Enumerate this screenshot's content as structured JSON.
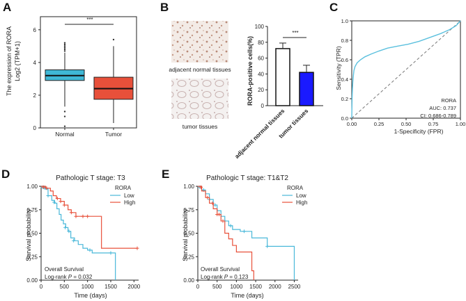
{
  "panels": {
    "A": {
      "letter": "A",
      "sig": "***"
    },
    "B": {
      "letter": "B",
      "sig": "***",
      "image_caption_top": "adjacent normal tissues",
      "image_caption_bottom": "tumor tissues"
    },
    "C": {
      "letter": "C",
      "auc_label": "AUC: 0.737",
      "ci_label": "CI: 0.686-0.789"
    },
    "D": {
      "letter": "D",
      "os_label": "Overall Survival",
      "logrank_label": "Log-rank ",
      "p_label": "P",
      "p_value": " = 0.032"
    },
    "E": {
      "letter": "E",
      "os_label": "Overall Survival",
      "logrank_label": "Log-rank ",
      "p_label": "P",
      "p_value": " = 0.123"
    }
  },
  "colors": {
    "normal_box": "#3fb8d6",
    "tumor_box": "#e8503a",
    "tumor_bar": "#1a1aff",
    "roc": "#5bc0de",
    "km_low": "#49b8d9",
    "km_high": "#e8503a"
  },
  "chart_data": [
    {
      "id": "A",
      "type": "box",
      "ylabel_line1": "The expression of RORA",
      "ylabel_line2": "Log2 (TPM+1)",
      "categories": [
        "Normal",
        "Tumor"
      ],
      "yticks": [
        "0",
        "2",
        "4",
        "6"
      ],
      "ylim": [
        0,
        6.8
      ],
      "series": [
        {
          "category": "Normal",
          "min": 1.3,
          "q1": 2.9,
          "median": 3.2,
          "q3": 3.55,
          "max": 4.6,
          "outliers_high": [
            4.7,
            4.8,
            4.9,
            5.0,
            5.1,
            5.2
          ],
          "outliers_low": [
            1.0,
            0.7,
            0.1
          ]
        },
        {
          "category": "Tumor",
          "min": 0.3,
          "q1": 1.75,
          "median": 2.4,
          "q3": 3.1,
          "max": 5.0,
          "outliers_high": [
            5.4
          ],
          "outliers_low": []
        }
      ]
    },
    {
      "id": "B",
      "type": "bar",
      "ylabel": "RORA-positive cells(%)",
      "categories": [
        "adjacent normal tissues",
        "tumor tissues"
      ],
      "values": [
        72,
        42
      ],
      "errors": [
        7,
        9
      ],
      "yticks": [
        "0",
        "20",
        "40",
        "60",
        "80",
        "100"
      ],
      "ylim": [
        0,
        100
      ]
    },
    {
      "id": "C",
      "type": "line",
      "title": "RORA",
      "xlabel": "1-Specificity (FPR)",
      "ylabel": "Sensitivity (TPR)",
      "xticks": [
        "0.00",
        "0.25",
        "0.50",
        "0.75",
        "1.00"
      ],
      "yticks": [
        "0.0",
        "0.2",
        "0.4",
        "0.6",
        "0.8",
        "1.0"
      ],
      "xlim": [
        0,
        1
      ],
      "ylim": [
        0,
        1
      ],
      "x": [
        0,
        0.003,
        0.006,
        0.01,
        0.015,
        0.02,
        0.03,
        0.05,
        0.08,
        0.12,
        0.18,
        0.25,
        0.33,
        0.42,
        0.52,
        0.62,
        0.72,
        0.82,
        0.9,
        0.96,
        1.0
      ],
      "y": [
        0,
        0.2,
        0.3,
        0.38,
        0.44,
        0.49,
        0.53,
        0.57,
        0.6,
        0.63,
        0.66,
        0.69,
        0.72,
        0.74,
        0.76,
        0.79,
        0.83,
        0.87,
        0.91,
        0.95,
        1.0
      ]
    },
    {
      "id": "D",
      "type": "line",
      "title": "Pathologic T stage: T3",
      "legend_title": "RORA",
      "xlabel": "Time (days)",
      "ylabel": "Survival probability",
      "xticks": [
        "0",
        "500",
        "1000",
        "1500",
        "2000"
      ],
      "yticks": [
        "0.00",
        "0.25",
        "0.50",
        "0.75",
        "1.00"
      ],
      "xlim": [
        0,
        2100
      ],
      "ylim": [
        0,
        1
      ],
      "series": [
        {
          "name": "Low",
          "x": [
            0,
            80,
            150,
            230,
            290,
            340,
            390,
            430,
            480,
            530,
            580,
            640,
            720,
            800,
            900,
            1000,
            1100,
            1600,
            1600
          ],
          "y": [
            1.0,
            0.97,
            0.9,
            0.85,
            0.82,
            0.76,
            0.7,
            0.64,
            0.6,
            0.56,
            0.52,
            0.45,
            0.42,
            0.38,
            0.34,
            0.32,
            0.29,
            0.29,
            0.0
          ]
        },
        {
          "name": "High",
          "x": [
            0,
            100,
            200,
            260,
            330,
            420,
            500,
            580,
            650,
            750,
            900,
            1200,
            1300,
            2070
          ],
          "y": [
            1.0,
            0.98,
            0.95,
            0.9,
            0.87,
            0.84,
            0.8,
            0.75,
            0.72,
            0.68,
            0.68,
            0.68,
            0.34,
            0.34
          ]
        }
      ],
      "censor_marks": {
        "Low": [
          [
            30,
            0.99
          ],
          [
            60,
            0.99
          ],
          [
            150,
            0.9
          ],
          [
            280,
            0.83
          ],
          [
            520,
            0.56
          ],
          [
            600,
            0.52
          ],
          [
            700,
            0.42
          ],
          [
            1050,
            0.32
          ],
          [
            1500,
            0.29
          ]
        ],
        "High": [
          [
            50,
            0.99
          ],
          [
            120,
            0.98
          ],
          [
            350,
            0.87
          ],
          [
            420,
            0.84
          ],
          [
            500,
            0.8
          ],
          [
            650,
            0.72
          ],
          [
            750,
            0.68
          ],
          [
            900,
            0.68
          ],
          [
            1000,
            0.68
          ],
          [
            2070,
            0.34
          ]
        ]
      }
    },
    {
      "id": "E",
      "type": "line",
      "title": "Pathologic T stage: T1&T2",
      "legend_title": "RORA",
      "xlabel": "Time (days)",
      "ylabel": "Survival probability",
      "xticks": [
        "0",
        "500",
        "1000",
        "1500",
        "2000",
        "2500"
      ],
      "yticks": [
        "0.00",
        "0.25",
        "0.50",
        "0.75",
        "1.00"
      ],
      "xlim": [
        0,
        2600
      ],
      "ylim": [
        0,
        1
      ],
      "series": [
        {
          "name": "Low",
          "x": [
            0,
            100,
            200,
            300,
            400,
            500,
            600,
            700,
            800,
            900,
            1100,
            1400,
            1800,
            2500,
            2500
          ],
          "y": [
            1.0,
            0.96,
            0.92,
            0.86,
            0.8,
            0.74,
            0.68,
            0.63,
            0.58,
            0.54,
            0.52,
            0.45,
            0.36,
            0.36,
            0.0
          ]
        },
        {
          "name": "High",
          "x": [
            0,
            100,
            200,
            300,
            400,
            500,
            600,
            700,
            800,
            900,
            1000,
            1400,
            1450
          ],
          "y": [
            1.0,
            0.95,
            0.88,
            0.82,
            0.76,
            0.7,
            0.63,
            0.5,
            0.44,
            0.37,
            0.3,
            0.1,
            0.0
          ]
        }
      ],
      "censor_marks": {
        "Low": [
          [
            50,
            0.99
          ],
          [
            150,
            0.96
          ],
          [
            300,
            0.86
          ],
          [
            450,
            0.8
          ],
          [
            700,
            0.63
          ],
          [
            850,
            0.58
          ],
          [
            1200,
            0.52
          ],
          [
            1800,
            0.36
          ]
        ],
        "High": [
          [
            80,
            0.99
          ],
          [
            250,
            0.88
          ],
          [
            380,
            0.82
          ],
          [
            500,
            0.7
          ],
          [
            550,
            0.7
          ],
          [
            650,
            0.63
          ]
        ]
      }
    }
  ]
}
